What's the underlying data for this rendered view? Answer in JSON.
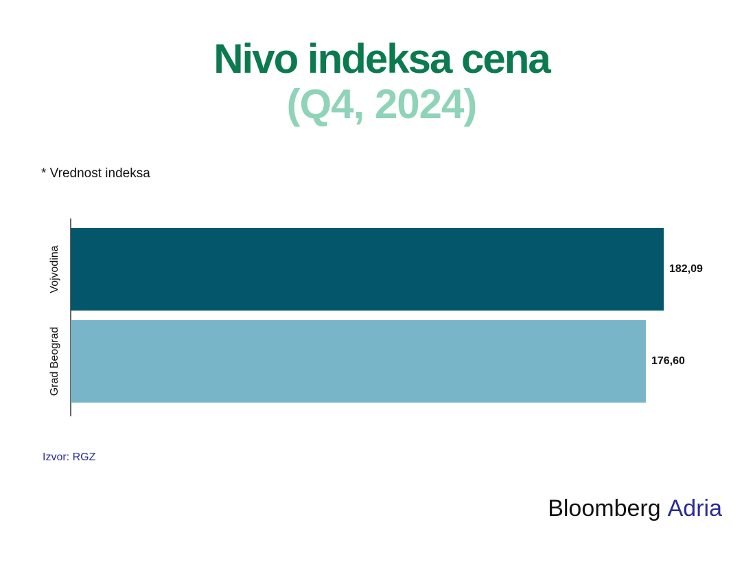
{
  "chart_data": {
    "type": "hbar",
    "title": "Nivo indeksa cena",
    "subtitle": "(Q4, 2024)",
    "note": "* Vrednost indeksa",
    "categories": [
      "Vojvodina",
      "Grad Beograd"
    ],
    "values": [
      182.09,
      176.6
    ],
    "value_labels": [
      "182,09",
      "176,60"
    ],
    "colors": [
      "#04566b",
      "#78b5c8"
    ],
    "source": "Izvor: RGZ",
    "brand": "Bloomberg",
    "brand_suffix": "Adria"
  }
}
